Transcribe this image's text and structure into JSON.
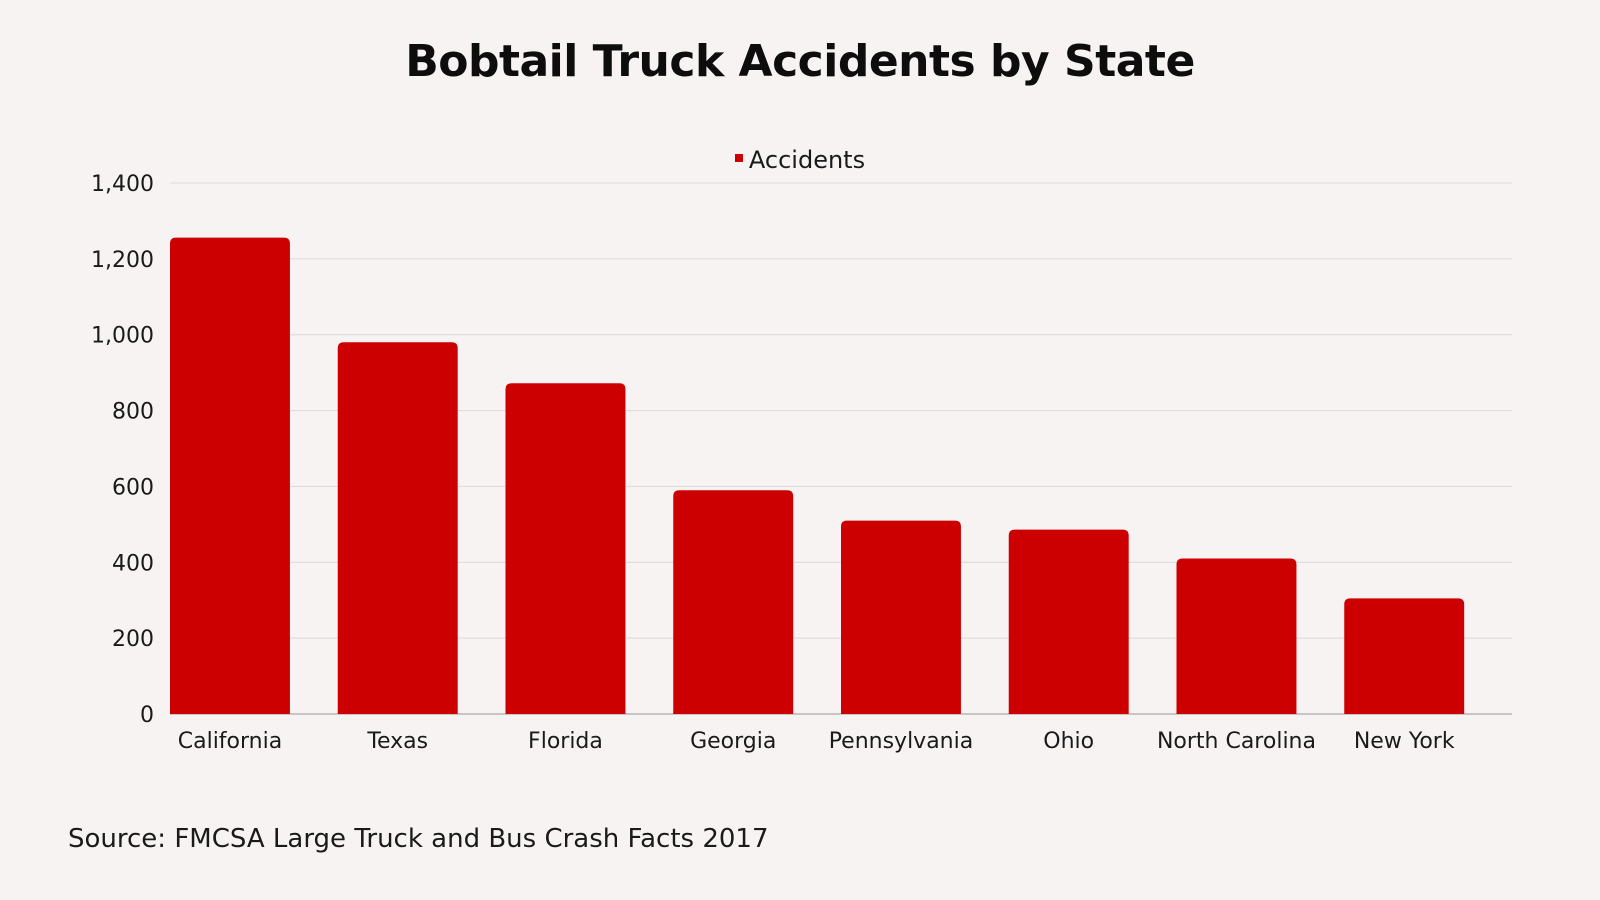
{
  "chart_data": {
    "type": "bar",
    "title": "Bobtail Truck Accidents by State",
    "categories": [
      "California",
      "Texas",
      "Florida",
      "Georgia",
      "Pennsylvania",
      "Ohio",
      "North Carolina",
      "New York"
    ],
    "series": [
      {
        "name": "Accidents",
        "values": [
          1256,
          980,
          872,
          590,
          510,
          486,
          410,
          305
        ],
        "color": "#cc0000"
      }
    ],
    "ylim": [
      0,
      1400
    ],
    "yticks": [
      0,
      200,
      400,
      600,
      800,
      1000,
      1200,
      1400
    ],
    "ytick_labels": [
      "0",
      "200",
      "400",
      "600",
      "800",
      "1,000",
      "1,200",
      "1,400"
    ],
    "grid": true,
    "legend_position": "top-center"
  },
  "source": "Source: FMCSA Large Truck and Bus Crash Facts 2017",
  "colors": {
    "bar": "#cc0000",
    "gridline": "#dcd8d8",
    "background": "#f8f3f3"
  }
}
